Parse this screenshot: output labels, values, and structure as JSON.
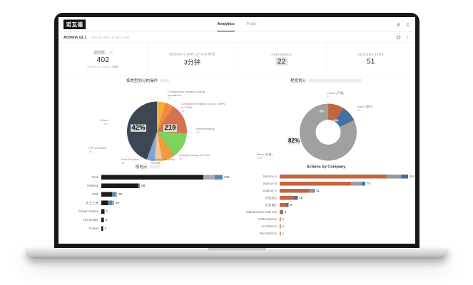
{
  "header": {
    "logo": "诺瓦德",
    "tabs": [
      {
        "label": "Analytics",
        "active": true
      },
      {
        "label": "Pulse",
        "active": false
      }
    ]
  },
  "subheader": {
    "app_name": "Actions v2.1",
    "date": "Mar 24, 2020 11:00:13 AM"
  },
  "kpis": [
    {
      "label": "总行动",
      "badge": "45",
      "value": "402",
      "sub_label": "OPEN ACTIONS",
      "sub_value": "219"
    },
    {
      "label": "MEDIAN COMPLETION 时间",
      "value": "3分钟"
    },
    {
      "label": "ASSIGNEES",
      "value": "22"
    },
    {
      "label": "ACTIONS TYPE",
      "value": "51"
    }
  ],
  "colors": {
    "accent_green": "#43a047",
    "highlight": "#e9e9e9",
    "bar_dark": "#1b1b1b",
    "bar_gray": "#a8a8a8",
    "bar_blue": "#5b84b8",
    "bar_orange": "#c2663f"
  },
  "chart_data": [
    {
      "type": "pie",
      "title": "按类型划分的操作",
      "legend_position": "around",
      "annotations": [
        "42%",
        "219"
      ],
      "slices": [
        {
          "label": "Compliances relating to lifting operations...",
          "value": 17,
          "color": "#f2b23a"
        },
        {
          "label": "Compliance relating to MLs, SMPs or PTWs",
          "value": 18,
          "color": "#ef8b41"
        },
        {
          "label": "Housekeeping",
          "value": 63,
          "color": "#d2754e"
        },
        {
          "label": "Improper usage of Tools",
          "value": 52,
          "color": "#7dd35c"
        },
        {
          "label": "Materials Handling / Storage",
          "value": 27,
          "color": "#ef9b3f"
        },
        {
          "label": "Poor Practice",
          "value": 16,
          "color": "#f2c49a"
        },
        {
          "label": "PPE provision",
          "value": 16,
          "color": "#7aa7d6"
        },
        {
          "label": "Others",
          "value": 167,
          "color": "#3d4653"
        }
      ]
    },
    {
      "type": "pie",
      "title": "程度划分",
      "donut": true,
      "slices": [
        {
          "label": "Critical (严重)",
          "value": 37,
          "pct": "9%",
          "color": "#c2663f"
        },
        {
          "label": "Major (重大)",
          "value": 37,
          "pct": "9%",
          "color": "#44719f"
        },
        {
          "label": "Minor (轻微)",
          "value": 335,
          "pct": "82%",
          "color": "#a0a0a0"
        }
      ]
    },
    {
      "type": "bar",
      "title": "按地点",
      "orientation": "horizontal",
      "rows": [
        {
          "label": "Tuas",
          "total": "276",
          "segments": [
            {
              "color": "#1b1b1b",
              "value": 232
            },
            {
              "color": "#a8a8a8",
              "value": 26
            },
            {
              "color": "#5b84b8",
              "value": 18
            }
          ]
        },
        {
          "label": "Railway",
          "total": "88",
          "segments": [
            {
              "color": "#1b1b1b",
              "value": 84
            },
            {
              "color": "#5b84b8",
              "value": 4
            }
          ]
        },
        {
          "label": "HDB",
          "total": "36",
          "segments": [
            {
              "color": "#1b1b1b",
              "value": 24
            },
            {
              "color": "#5b84b8",
              "value": 8
            },
            {
              "color": "#a8a8a8",
              "value": 4
            }
          ]
        },
        {
          "label": "大士工地",
          "total": "29",
          "segments": [
            {
              "color": "#1b1b1b",
              "value": 15
            },
            {
              "color": "#5b84b8",
              "value": 9
            },
            {
              "color": "#a8a8a8",
              "value": 5
            }
          ]
        },
        {
          "label": "Power Station",
          "total": "7",
          "segments": [
            {
              "color": "#1b1b1b",
              "value": 7
            }
          ]
        },
        {
          "label": "The Bridge",
          "total": "6",
          "segments": [
            {
              "color": "#1b1b1b",
              "value": 5
            },
            {
              "color": "#5b84b8",
              "value": 1
            }
          ]
        },
        {
          "label": "Tunnel",
          "total": "4",
          "segments": [
            {
              "color": "#1b1b1b",
              "value": 4
            }
          ]
        }
      ]
    },
    {
      "type": "bar",
      "title": "Actions by Company",
      "orientation": "horizontal",
      "rows": [
        {
          "label": "Subcon A",
          "total": "114",
          "segments": [
            {
              "color": "#c2663f",
              "value": 95
            },
            {
              "color": "#9a9a9a",
              "value": 13
            },
            {
              "color": "#3f6fa8",
              "value": 6
            }
          ]
        },
        {
          "label": "Subcon B",
          "total": "76",
          "segments": [
            {
              "color": "#c2663f",
              "value": 63
            },
            {
              "color": "#9a9a9a",
              "value": 10
            },
            {
              "color": "#3f6fa8",
              "value": 3
            }
          ]
        },
        {
          "label": "Subcon C",
          "total": "31",
          "segments": [
            {
              "color": "#c2663f",
              "value": 26
            },
            {
              "color": "#9a9a9a",
              "value": 4
            },
            {
              "color": "#3f6fa8",
              "value": 1
            }
          ]
        },
        {
          "label": "分包商D",
          "total": "16",
          "segments": [
            {
              "color": "#c2663f",
              "value": 13
            },
            {
              "color": "#3f6fa8",
              "value": 3
            }
          ]
        },
        {
          "label": "分包商E",
          "total": "8",
          "segments": [
            {
              "color": "#c2663f",
              "value": 6
            },
            {
              "color": "#3f6fa8",
              "value": 2
            }
          ]
        },
        {
          "label": "Maintenance sub-con",
          "total": "3",
          "segments": [
            {
              "color": "#c2663f",
              "value": 2
            },
            {
              "color": "#2f4b6e",
              "value": 1
            }
          ]
        },
        {
          "label": "HDB Subcon",
          "total": "1",
          "segments": [
            {
              "color": "#c2663f",
              "value": 1
            }
          ]
        },
        {
          "label": "JV Subcon",
          "total": "1",
          "segments": [
            {
              "color": "#c2663f",
              "value": 1
            }
          ]
        },
        {
          "label": "Rail Subcon",
          "total": "1",
          "segments": [
            {
              "color": "#c2663f",
              "value": 1
            }
          ]
        }
      ]
    }
  ]
}
